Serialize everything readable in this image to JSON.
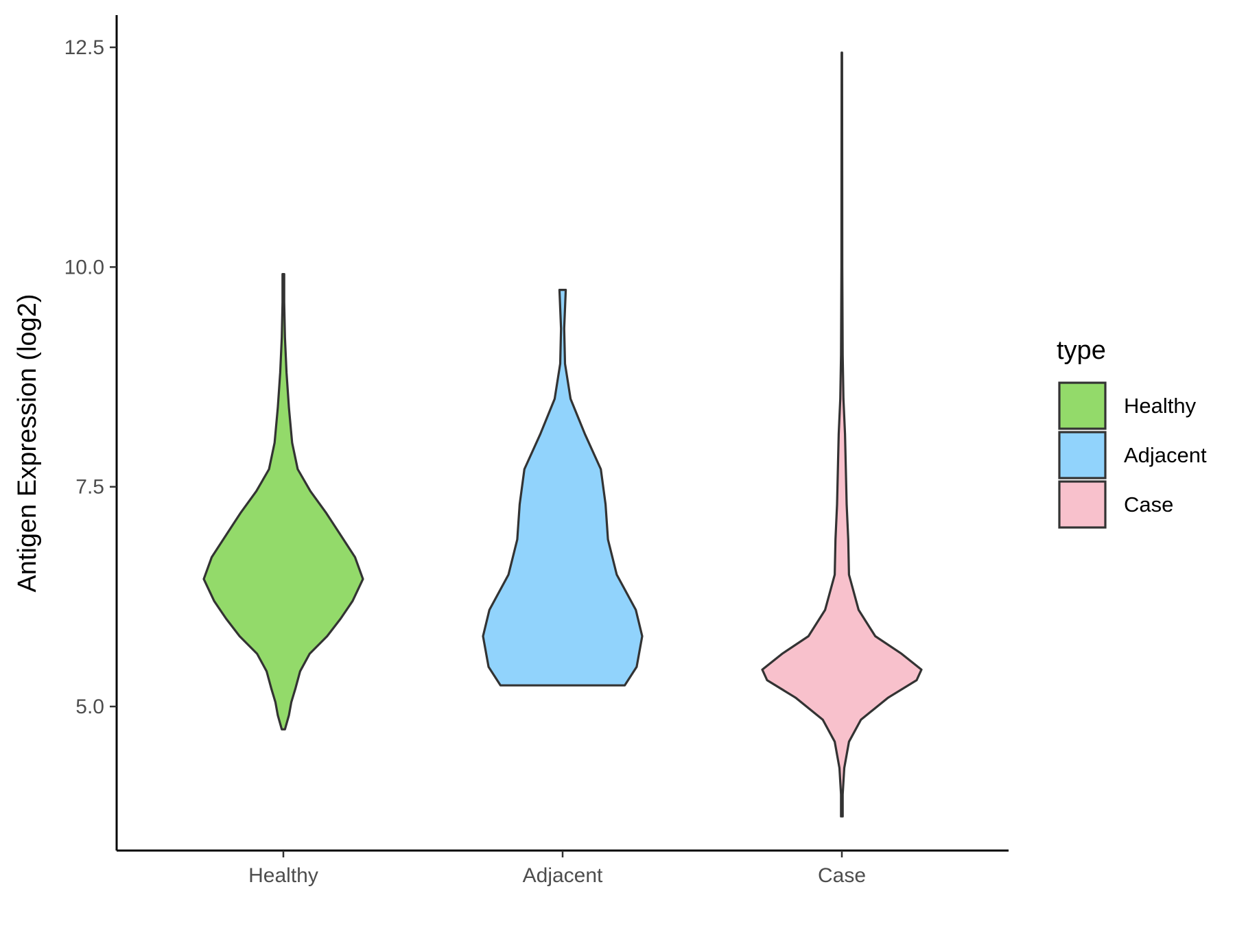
{
  "chart_data": {
    "type": "violin",
    "ylabel": "Antigen Expression (log2)",
    "xlabel": "",
    "ylim": [
      3.4,
      12.9
    ],
    "yticks": [
      5.0,
      7.5,
      10.0,
      12.5
    ],
    "ytick_labels": [
      "5.0",
      "7.5",
      "10.0",
      "12.5"
    ],
    "grid": false,
    "categories": [
      "Healthy",
      "Adjacent",
      "Case"
    ],
    "legend": {
      "title": "type",
      "placement": "right",
      "entries": [
        "Healthy",
        "Adjacent",
        "Case"
      ]
    },
    "series": [
      {
        "name": "Healthy",
        "color": "#93da6a",
        "min": 4.74,
        "max": 9.92,
        "density_profile": [
          [
            4.74,
            0.02
          ],
          [
            4.9,
            0.07
          ],
          [
            5.05,
            0.1
          ],
          [
            5.2,
            0.15
          ],
          [
            5.4,
            0.21
          ],
          [
            5.6,
            0.33
          ],
          [
            5.8,
            0.55
          ],
          [
            6.0,
            0.72
          ],
          [
            6.2,
            0.87
          ],
          [
            6.45,
            1.0
          ],
          [
            6.7,
            0.9
          ],
          [
            6.95,
            0.72
          ],
          [
            7.2,
            0.54
          ],
          [
            7.45,
            0.34
          ],
          [
            7.7,
            0.18
          ],
          [
            8.0,
            0.11
          ],
          [
            8.4,
            0.07
          ],
          [
            8.8,
            0.04
          ],
          [
            9.2,
            0.02
          ],
          [
            9.6,
            0.01
          ],
          [
            9.92,
            0.01
          ]
        ]
      },
      {
        "name": "Adjacent",
        "color": "#91d3fc",
        "min": 5.24,
        "max": 9.74,
        "density_profile": [
          [
            5.24,
            0.78
          ],
          [
            5.45,
            0.93
          ],
          [
            5.8,
            1.0
          ],
          [
            6.1,
            0.92
          ],
          [
            6.5,
            0.68
          ],
          [
            6.9,
            0.57
          ],
          [
            7.3,
            0.54
          ],
          [
            7.7,
            0.48
          ],
          [
            8.1,
            0.28
          ],
          [
            8.5,
            0.1
          ],
          [
            8.9,
            0.03
          ],
          [
            9.3,
            0.02
          ],
          [
            9.74,
            0.04
          ]
        ]
      },
      {
        "name": "Case",
        "color": "#f8c1cc",
        "min": 3.75,
        "max": 12.44,
        "density_profile": [
          [
            3.75,
            0.01
          ],
          [
            4.0,
            0.01
          ],
          [
            4.3,
            0.03
          ],
          [
            4.6,
            0.09
          ],
          [
            4.85,
            0.24
          ],
          [
            5.1,
            0.58
          ],
          [
            5.3,
            0.94
          ],
          [
            5.42,
            1.0
          ],
          [
            5.6,
            0.75
          ],
          [
            5.8,
            0.42
          ],
          [
            6.1,
            0.21
          ],
          [
            6.5,
            0.09
          ],
          [
            6.9,
            0.08
          ],
          [
            7.3,
            0.06
          ],
          [
            7.7,
            0.05
          ],
          [
            8.1,
            0.04
          ],
          [
            8.5,
            0.02
          ],
          [
            9.0,
            0.01
          ],
          [
            10.0,
            0.005
          ],
          [
            11.0,
            0.004
          ],
          [
            12.44,
            0.003
          ]
        ]
      }
    ]
  }
}
